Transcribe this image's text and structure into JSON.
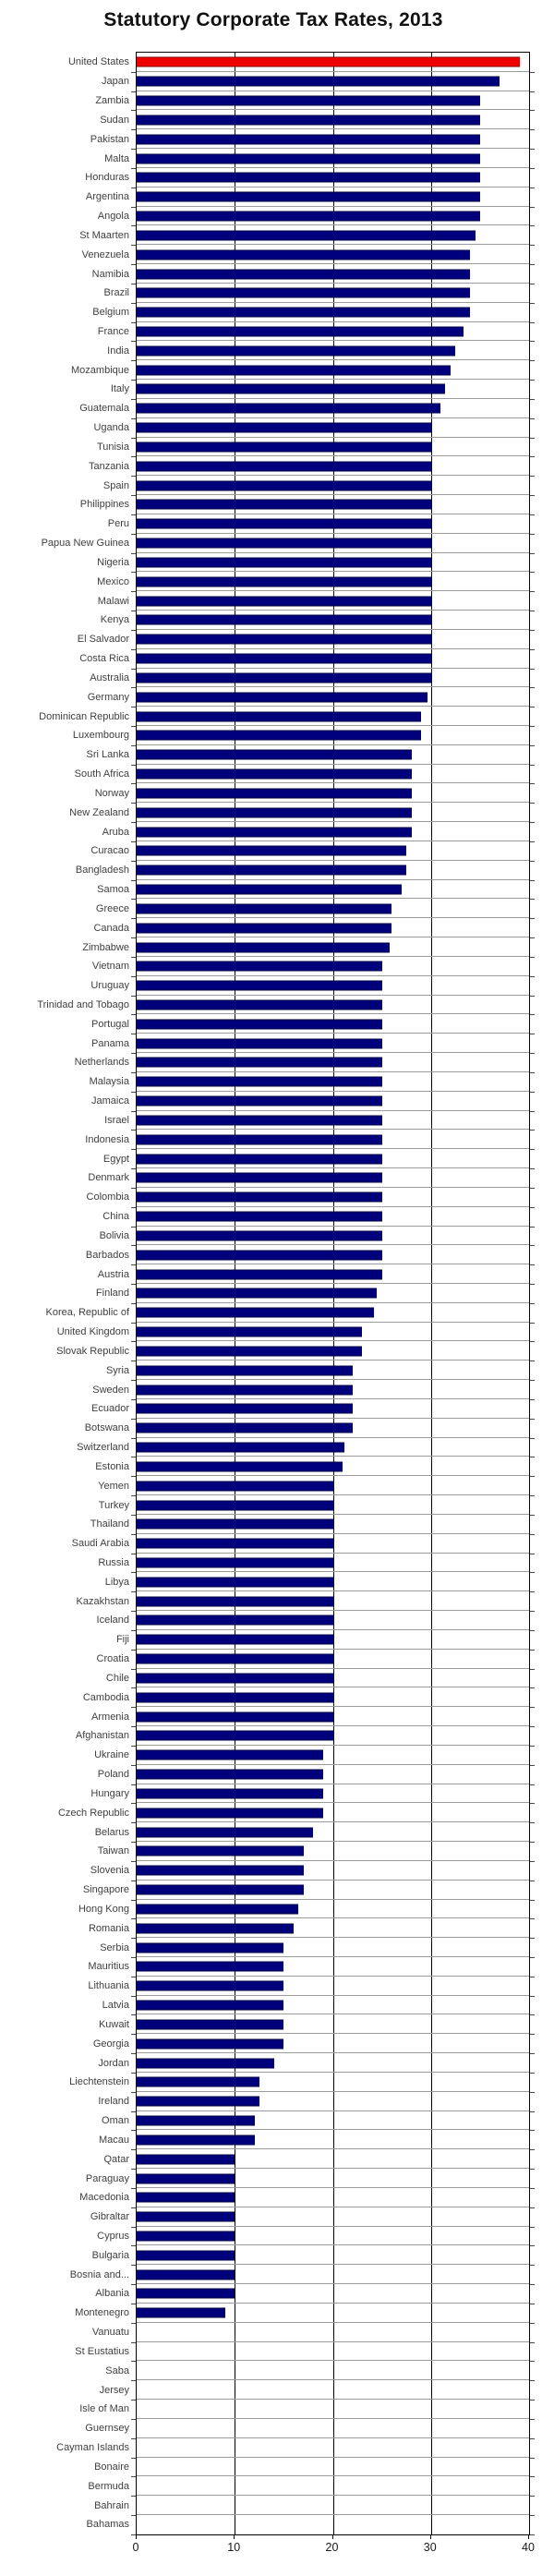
{
  "colors": {
    "background": "#ffffff",
    "plot_border": "#000000",
    "grid_line_vertical": "#000000",
    "row_separator_line": "#9c9c9c",
    "label_text": "#404040",
    "axis_text": "#1a1a1a",
    "bar_navy": "#00007d",
    "bar_red": "#ee0000"
  },
  "chart_data": {
    "type": "bar",
    "orientation": "horizontal",
    "title": "Statutory Corporate Tax Rates, 2013",
    "xlabel": "",
    "ylabel": "",
    "xlim": [
      0,
      40
    ],
    "xticks": [
      0,
      10,
      20,
      30,
      40
    ],
    "grid": "vertical black gridlines at 10/20/30; light gray horizontal separator between every category row",
    "legend": "none",
    "bar_color": "#00007d",
    "highlight_color": "#ee0000",
    "highlight_index": 0,
    "highlight_category": "United States",
    "categories": [
      "United States",
      "Japan",
      "Zambia",
      "Sudan",
      "Pakistan",
      "Malta",
      "Honduras",
      "Argentina",
      "Angola",
      "St Maarten",
      "Venezuela",
      "Namibia",
      "Brazil",
      "Belgium",
      "France",
      "India",
      "Mozambique",
      "Italy",
      "Guatemala",
      "Uganda",
      "Tunisia",
      "Tanzania",
      "Spain",
      "Philippines",
      "Peru",
      "Papua New Guinea",
      "Nigeria",
      "Mexico",
      "Malawi",
      "Kenya",
      "El Salvador",
      "Costa Rica",
      "Australia",
      "Germany",
      "Dominican Republic",
      "Luxembourg",
      "Sri Lanka",
      "South Africa",
      "Norway",
      "New Zealand",
      "Aruba",
      "Curacao",
      "Bangladesh",
      "Samoa",
      "Greece",
      "Canada",
      "Zimbabwe",
      "Vietnam",
      "Uruguay",
      "Trinidad and Tobago",
      "Portugal",
      "Panama",
      "Netherlands",
      "Malaysia",
      "Jamaica",
      "Israel",
      "Indonesia",
      "Egypt",
      "Denmark",
      "Colombia",
      "China",
      "Bolivia",
      "Barbados",
      "Austria",
      "Finland",
      "Korea, Republic of",
      "United Kingdom",
      "Slovak Republic",
      "Syria",
      "Sweden",
      "Ecuador",
      "Botswana",
      "Switzerland",
      "Estonia",
      "Yemen",
      "Turkey",
      "Thailand",
      "Saudi Arabia",
      "Russia",
      "Libya",
      "Kazakhstan",
      "Iceland",
      "Fiji",
      "Croatia",
      "Chile",
      "Cambodia",
      "Armenia",
      "Afghanistan",
      "Ukraine",
      "Poland",
      "Hungary",
      "Czech Republic",
      "Belarus",
      "Taiwan",
      "Slovenia",
      "Singapore",
      "Hong Kong",
      "Romania",
      "Serbia",
      "Mauritius",
      "Lithuania",
      "Latvia",
      "Kuwait",
      "Georgia",
      "Jordan",
      "Liechtenstein",
      "Ireland",
      "Oman",
      "Macau",
      "Qatar",
      "Paraguay",
      "Macedonia",
      "Gibraltar",
      "Cyprus",
      "Bulgaria",
      "Bosnia and...",
      "Albania",
      "Montenegro",
      "Vanuatu",
      "St Eustatius",
      "Saba",
      "Jersey",
      "Isle of Man",
      "Guernsey",
      "Cayman Islands",
      "Bonaire",
      "Bermuda",
      "Bahrain",
      "Bahamas"
    ],
    "values": [
      39.1,
      37.0,
      35,
      35,
      35,
      35,
      35,
      35,
      35,
      34.5,
      34,
      34,
      34,
      34,
      33.3,
      32.5,
      32,
      31.4,
      31,
      30,
      30,
      30,
      30,
      30,
      30,
      30,
      30,
      30,
      30,
      30,
      30,
      30,
      30,
      29.6,
      29,
      29,
      28,
      28,
      28,
      28,
      28,
      27.5,
      27.5,
      27,
      26,
      26,
      25.8,
      25,
      25,
      25,
      25,
      25,
      25,
      25,
      25,
      25,
      25,
      25,
      25,
      25,
      25,
      25,
      25,
      25,
      24.5,
      24.2,
      23,
      23,
      22,
      22,
      22,
      22,
      21.2,
      21,
      20,
      20,
      20,
      20,
      20,
      20,
      20,
      20,
      20,
      20,
      20,
      20,
      20,
      20,
      19,
      19,
      19,
      19,
      18,
      17,
      17,
      17,
      16.5,
      16,
      15,
      15,
      15,
      15,
      15,
      15,
      14,
      12.5,
      12.5,
      12,
      12,
      10,
      10,
      10,
      10,
      10,
      10,
      10,
      10,
      9,
      0,
      0,
      0,
      0,
      0,
      0,
      0,
      0,
      0,
      0,
      0
    ]
  }
}
